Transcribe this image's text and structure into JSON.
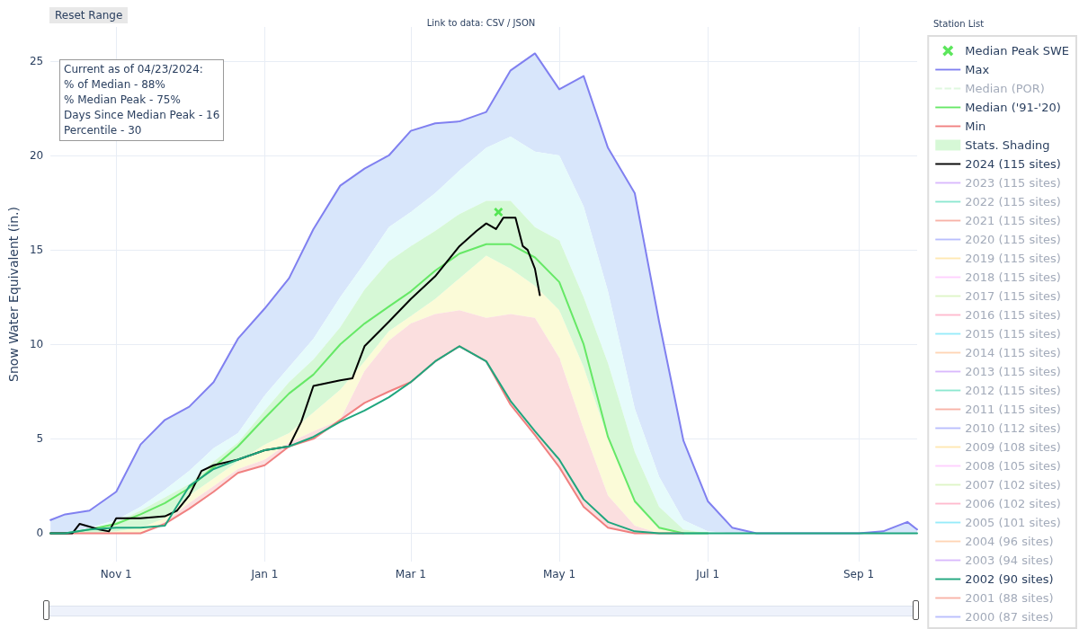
{
  "chart_data": {
    "type": "line",
    "ylabel": "Snow Water Equivalent (in.)",
    "x": [
      "2023-10-05",
      "2023-10-11",
      "2023-10-21",
      "2023-11-01",
      "2023-11-11",
      "2023-11-21",
      "2023-12-01",
      "2023-12-11",
      "2023-12-21",
      "2024-01-01",
      "2024-01-11",
      "2024-01-21",
      "2024-02-01",
      "2024-02-11",
      "2024-02-21",
      "2024-03-01",
      "2024-03-11",
      "2024-03-21",
      "2024-04-01",
      "2024-04-11",
      "2024-04-21",
      "2024-05-01",
      "2024-05-11",
      "2024-05-21",
      "2024-06-01",
      "2024-06-11",
      "2024-06-21",
      "2024-07-01",
      "2024-07-11",
      "2024-07-21",
      "2024-08-01",
      "2024-08-11",
      "2024-08-21",
      "2024-09-01",
      "2024-09-11",
      "2024-09-21",
      "2024-09-25"
    ],
    "xlim": [
      "2023-10-05",
      "2024-09-25"
    ],
    "xticks": [
      {
        "value": "2023-11-01",
        "label": "Nov 1"
      },
      {
        "value": "2024-01-01",
        "label": "Jan 1"
      },
      {
        "value": "2024-03-01",
        "label": "Mar 1"
      },
      {
        "value": "2024-05-01",
        "label": "May 1"
      },
      {
        "value": "2024-07-01",
        "label": "Jul 1"
      },
      {
        "value": "2024-09-01",
        "label": "Sep 1"
      }
    ],
    "ylim": [
      -1.5,
      26.8
    ],
    "yticks": [
      0,
      5,
      10,
      15,
      20,
      25
    ],
    "grid": true,
    "legend": "right",
    "marker": "none",
    "line_style": "solid",
    "annotations": [
      "Reset Range",
      "Link to data: CSV / JSON",
      "Station List",
      "Current as of 04/23/2024:",
      "% of Median - 88%",
      "% Median Peak - 75%",
      "Days Since Median Peak - 16",
      "Percentile - 30"
    ],
    "series": [
      {
        "type": "line",
        "color": "#d8e6fb",
        "values": [
          null,
          null,
          null,
          null,
          null,
          null,
          null,
          null,
          null,
          null,
          null,
          null,
          null,
          null,
          null,
          null,
          null,
          null,
          null,
          null,
          null,
          null,
          null,
          null,
          null,
          null,
          null,
          null,
          null,
          null,
          null,
          null,
          null,
          null,
          null,
          null,
          null
        ],
        "lower": [
          0,
          0,
          0.3,
          0.7,
          1.4,
          2.3,
          3.3,
          4.5,
          5.3,
          7.3,
          8.8,
          10.3,
          12.5,
          14.3,
          16.2,
          17.0,
          18.0,
          19.2,
          20.4,
          21.0,
          20.2,
          20.0,
          17.3,
          12.8,
          6.6,
          3.0,
          0.7,
          0.1,
          0,
          0,
          0,
          0,
          0,
          0,
          0,
          0,
          0
        ],
        "upper": [
          0.7,
          1.0,
          1.2,
          2.2,
          4.7,
          6.0,
          6.7,
          8.0,
          10.3,
          11.9,
          13.5,
          16.1,
          18.4,
          19.3,
          20.0,
          21.3,
          21.7,
          21.8,
          22.3,
          24.5,
          25.4,
          23.5,
          24.2,
          20.4,
          18.0,
          11.2,
          4.9,
          1.7,
          0.3,
          0,
          0,
          0,
          0,
          0,
          0.1,
          0.6,
          0.2
        ]
      },
      {
        "type": "line",
        "color": "#e6fbfb",
        "values": [
          null,
          null,
          null,
          null,
          null,
          null,
          null,
          null,
          null,
          null,
          null,
          null,
          null,
          null,
          null,
          null,
          null,
          null,
          null,
          null,
          null,
          null,
          null,
          null,
          null,
          null,
          null,
          null,
          null,
          null,
          null,
          null,
          null,
          null,
          null,
          null,
          null
        ],
        "lower": [
          0,
          0,
          0.2,
          0.6,
          1.2,
          1.9,
          2.6,
          3.8,
          4.8,
          6.5,
          8.0,
          9.2,
          10.9,
          12.9,
          14.4,
          15.2,
          16.0,
          16.9,
          17.6,
          17.6,
          16.2,
          15.5,
          12.5,
          9.0,
          4.3,
          1.4,
          0.2,
          0,
          0,
          0,
          0,
          0,
          0,
          0,
          0,
          0,
          0
        ],
        "upper": [
          0,
          0,
          0.3,
          0.7,
          1.4,
          2.3,
          3.3,
          4.5,
          5.3,
          7.3,
          8.8,
          10.3,
          12.5,
          14.3,
          16.2,
          17.0,
          18.0,
          19.2,
          20.4,
          21.0,
          20.2,
          20.0,
          17.3,
          12.8,
          6.6,
          3.0,
          0.7,
          0.1,
          0,
          0,
          0,
          0,
          0,
          0,
          0,
          0,
          0
        ]
      },
      {
        "type": "line",
        "color": "#fbfbd8",
        "values": [
          null,
          null,
          null,
          null,
          null,
          null,
          null,
          null,
          null,
          null,
          null,
          null,
          null,
          null,
          null,
          null,
          null,
          null,
          null,
          null,
          null,
          null,
          null,
          null,
          null,
          null,
          null,
          null,
          null,
          null,
          null,
          null,
          null,
          null,
          null,
          null,
          null
        ],
        "lower": [
          0,
          0,
          0,
          0,
          0,
          0.6,
          1.6,
          2.5,
          3.4,
          3.9,
          4.8,
          5.4,
          6.0,
          8.6,
          10.2,
          11.1,
          11.6,
          11.8,
          11.4,
          11.6,
          11.4,
          9.3,
          5.5,
          2.0,
          0.4,
          0,
          0,
          0,
          0,
          0,
          0,
          0,
          0,
          0,
          0,
          0,
          0
        ],
        "upper": [
          0,
          0,
          0,
          0.1,
          0.3,
          0.8,
          2.0,
          2.9,
          3.8,
          4.7,
          5.3,
          6.4,
          7.6,
          9.1,
          10.7,
          11.5,
          12.4,
          13.5,
          14.7,
          14.0,
          13.1,
          11.8,
          8.8,
          5.0,
          1.6,
          0.2,
          0,
          0,
          0,
          0,
          0,
          0,
          0,
          0,
          0,
          0,
          0
        ]
      },
      {
        "type": "line",
        "color": "#fbdfdf",
        "values": [
          null,
          null,
          null,
          null,
          null,
          null,
          null,
          null,
          null,
          null,
          null,
          null,
          null,
          null,
          null,
          null,
          null,
          null,
          null,
          null,
          null,
          null,
          null,
          null,
          null,
          null,
          null,
          null,
          null,
          null,
          null,
          null,
          null,
          null,
          null,
          null,
          null
        ],
        "lower": [
          0,
          0,
          0,
          0,
          0,
          0.5,
          1.3,
          2.2,
          3.2,
          3.6,
          4.6,
          5.0,
          6.0,
          6.9,
          7.5,
          8.0,
          9.1,
          9.9,
          9.1,
          6.8,
          5.2,
          3.5,
          1.4,
          0.3,
          0,
          0,
          0,
          0,
          0,
          0,
          0,
          0,
          0,
          0,
          0,
          0,
          0
        ],
        "upper": [
          0,
          0,
          0,
          0,
          0,
          0.6,
          1.6,
          2.5,
          3.4,
          3.9,
          4.8,
          5.4,
          6.0,
          8.6,
          10.2,
          11.1,
          11.6,
          11.8,
          11.4,
          11.6,
          11.4,
          9.3,
          5.5,
          2.0,
          0.4,
          0,
          0,
          0,
          0,
          0,
          0,
          0,
          0,
          0,
          0,
          0,
          0
        ]
      },
      {
        "type": "scatter",
        "name": "Median Peak SWE",
        "color": "#33e033",
        "marker": "cross",
        "x": [
          "2024-04-06"
        ],
        "values": [
          17.0
        ]
      },
      {
        "name": "Max",
        "color": "#8080f0",
        "values": [
          0.7,
          1.0,
          1.2,
          2.2,
          4.7,
          6.0,
          6.7,
          8.0,
          10.3,
          11.9,
          13.5,
          16.1,
          18.4,
          19.3,
          20.0,
          21.3,
          21.7,
          21.8,
          22.3,
          24.5,
          25.4,
          23.5,
          24.2,
          20.4,
          18.0,
          11.2,
          4.9,
          1.7,
          0.3,
          0,
          0,
          0,
          0,
          0,
          0.1,
          0.6,
          0.2
        ]
      },
      {
        "name": "Median (POR)",
        "color": "#b8f0b8",
        "line_style": "dashed",
        "values": [
          null,
          null,
          null,
          null,
          null,
          null,
          null,
          null,
          null,
          null,
          null,
          null,
          null,
          null,
          null,
          null,
          null,
          null,
          null,
          null,
          null,
          null,
          null,
          null,
          null,
          null,
          null,
          null,
          null,
          null,
          null,
          null,
          null,
          null,
          null,
          null,
          null
        ]
      },
      {
        "name": "Median ('91-'20)",
        "color": "#66e866",
        "values": [
          0,
          0,
          0.2,
          0.5,
          1.0,
          1.6,
          2.4,
          3.5,
          4.6,
          6.1,
          7.4,
          8.4,
          10.0,
          11.1,
          12.0,
          12.8,
          13.9,
          14.8,
          15.3,
          15.3,
          14.6,
          13.3,
          10.0,
          5.1,
          1.7,
          0.3,
          0,
          0,
          null,
          null,
          null,
          null,
          null,
          null,
          null,
          null,
          null
        ]
      },
      {
        "name": "Min",
        "color": "#f08080",
        "values": [
          0,
          0,
          0,
          0,
          0,
          0.5,
          1.3,
          2.2,
          3.2,
          3.6,
          4.6,
          5.0,
          6.0,
          6.9,
          7.5,
          8.0,
          9.1,
          9.9,
          9.1,
          6.8,
          5.2,
          3.5,
          1.4,
          0.3,
          0,
          0,
          0,
          null,
          null,
          null,
          null,
          null,
          null,
          null,
          null,
          null,
          null
        ]
      },
      {
        "type": "line",
        "name": "Stats. Shading",
        "color": "#d6f8d6",
        "values": [
          null,
          null,
          null,
          null,
          null,
          null,
          null,
          null,
          null,
          null,
          null,
          null,
          null,
          null,
          null,
          null,
          null,
          null,
          null,
          null,
          null,
          null,
          null,
          null,
          null,
          null,
          null,
          null,
          null,
          null,
          null,
          null,
          null,
          null,
          null,
          null,
          null
        ],
        "lower": [
          0,
          0,
          0,
          0.1,
          0.3,
          0.8,
          2.0,
          2.9,
          3.8,
          4.7,
          5.3,
          6.4,
          7.6,
          9.1,
          10.7,
          11.5,
          12.4,
          13.5,
          14.7,
          14.0,
          13.1,
          11.8,
          8.8,
          5.0,
          1.6,
          0.2,
          0,
          0,
          0,
          0,
          0,
          0,
          0,
          0,
          0,
          0,
          0
        ],
        "upper": [
          0,
          0,
          0.2,
          0.6,
          1.2,
          1.9,
          2.6,
          3.8,
          4.8,
          6.5,
          8.0,
          9.2,
          10.9,
          12.9,
          14.4,
          15.2,
          16.0,
          16.9,
          17.6,
          17.6,
          16.2,
          15.5,
          12.5,
          9.0,
          4.3,
          1.4,
          0.2,
          0,
          0,
          0,
          0,
          0,
          0,
          0,
          0,
          0,
          0
        ]
      },
      {
        "name": "2024 (115 sites)",
        "color": "#000000",
        "x": [
          "2023-10-05",
          "2023-10-14",
          "2023-10-17",
          "2023-10-25",
          "2023-10-29",
          "2023-11-01",
          "2023-11-11",
          "2023-11-21",
          "2023-11-26",
          "2023-12-01",
          "2023-12-06",
          "2023-12-11",
          "2023-12-21",
          "2024-01-01",
          "2024-01-11",
          "2024-01-16",
          "2024-01-21",
          "2024-02-01",
          "2024-02-06",
          "2024-02-11",
          "2024-02-21",
          "2024-03-01",
          "2024-03-11",
          "2024-03-21",
          "2024-03-28",
          "2024-04-01",
          "2024-04-05",
          "2024-04-08",
          "2024-04-13",
          "2024-04-16",
          "2024-04-18",
          "2024-04-21",
          "2024-04-23"
        ],
        "values": [
          0,
          0,
          0.5,
          0.2,
          0.1,
          0.8,
          0.8,
          0.9,
          1.2,
          2.0,
          3.3,
          3.6,
          3.9,
          4.4,
          4.6,
          5.9,
          7.8,
          8.1,
          8.2,
          9.9,
          11.2,
          12.4,
          13.6,
          15.2,
          16.0,
          16.4,
          16.1,
          16.7,
          16.7,
          15.2,
          15.0,
          14.0,
          12.6
        ]
      },
      {
        "name": "2023 (115 sites)",
        "color": "#ab63fa",
        "values": [
          null,
          null,
          null,
          null,
          null,
          null,
          null,
          null,
          null,
          null,
          null,
          null,
          null,
          null,
          null,
          null,
          null,
          null,
          null,
          null,
          null,
          null,
          null,
          null,
          null,
          null,
          null,
          null,
          null,
          null,
          null,
          null,
          null,
          null,
          null,
          null,
          null
        ]
      },
      {
        "name": "2022 (115 sites)",
        "color": "#00cc96",
        "values": [
          null,
          null,
          null,
          null,
          null,
          null,
          null,
          null,
          null,
          null,
          null,
          null,
          null,
          null,
          null,
          null,
          null,
          null,
          null,
          null,
          null,
          null,
          null,
          null,
          null,
          null,
          null,
          null,
          null,
          null,
          null,
          null,
          null,
          null,
          null,
          null,
          null
        ]
      },
      {
        "name": "2021 (115 sites)",
        "color": "#ef553b",
        "values": [
          null,
          null,
          null,
          null,
          null,
          null,
          null,
          null,
          null,
          null,
          null,
          null,
          null,
          null,
          null,
          null,
          null,
          null,
          null,
          null,
          null,
          null,
          null,
          null,
          null,
          null,
          null,
          null,
          null,
          null,
          null,
          null,
          null,
          null,
          null,
          null,
          null
        ]
      },
      {
        "name": "2020 (115 sites)",
        "color": "#636efa",
        "values": [
          null,
          null,
          null,
          null,
          null,
          null,
          null,
          null,
          null,
          null,
          null,
          null,
          null,
          null,
          null,
          null,
          null,
          null,
          null,
          null,
          null,
          null,
          null,
          null,
          null,
          null,
          null,
          null,
          null,
          null,
          null,
          null,
          null,
          null,
          null,
          null,
          null
        ]
      },
      {
        "name": "2019 (115 sites)",
        "color": "#fecb52",
        "values": [
          null,
          null,
          null,
          null,
          null,
          null,
          null,
          null,
          null,
          null,
          null,
          null,
          null,
          null,
          null,
          null,
          null,
          null,
          null,
          null,
          null,
          null,
          null,
          null,
          null,
          null,
          null,
          null,
          null,
          null,
          null,
          null,
          null,
          null,
          null,
          null,
          null
        ]
      },
      {
        "name": "2018 (115 sites)",
        "color": "#ff97ff",
        "values": [
          null,
          null,
          null,
          null,
          null,
          null,
          null,
          null,
          null,
          null,
          null,
          null,
          null,
          null,
          null,
          null,
          null,
          null,
          null,
          null,
          null,
          null,
          null,
          null,
          null,
          null,
          null,
          null,
          null,
          null,
          null,
          null,
          null,
          null,
          null,
          null,
          null
        ]
      },
      {
        "name": "2017 (115 sites)",
        "color": "#b6e880",
        "values": [
          null,
          null,
          null,
          null,
          null,
          null,
          null,
          null,
          null,
          null,
          null,
          null,
          null,
          null,
          null,
          null,
          null,
          null,
          null,
          null,
          null,
          null,
          null,
          null,
          null,
          null,
          null,
          null,
          null,
          null,
          null,
          null,
          null,
          null,
          null,
          null,
          null
        ]
      },
      {
        "name": "2016 (115 sites)",
        "color": "#ff6692",
        "values": [
          null,
          null,
          null,
          null,
          null,
          null,
          null,
          null,
          null,
          null,
          null,
          null,
          null,
          null,
          null,
          null,
          null,
          null,
          null,
          null,
          null,
          null,
          null,
          null,
          null,
          null,
          null,
          null,
          null,
          null,
          null,
          null,
          null,
          null,
          null,
          null,
          null
        ]
      },
      {
        "name": "2015 (115 sites)",
        "color": "#19d3f3",
        "values": [
          null,
          null,
          null,
          null,
          null,
          null,
          null,
          null,
          null,
          null,
          null,
          null,
          null,
          null,
          null,
          null,
          null,
          null,
          null,
          null,
          null,
          null,
          null,
          null,
          null,
          null,
          null,
          null,
          null,
          null,
          null,
          null,
          null,
          null,
          null,
          null,
          null
        ]
      },
      {
        "name": "2014 (115 sites)",
        "color": "#ffa15a",
        "values": [
          null,
          null,
          null,
          null,
          null,
          null,
          null,
          null,
          null,
          null,
          null,
          null,
          null,
          null,
          null,
          null,
          null,
          null,
          null,
          null,
          null,
          null,
          null,
          null,
          null,
          null,
          null,
          null,
          null,
          null,
          null,
          null,
          null,
          null,
          null,
          null,
          null
        ]
      },
      {
        "name": "2013 (115 sites)",
        "color": "#ab63fa",
        "values": [
          null,
          null,
          null,
          null,
          null,
          null,
          null,
          null,
          null,
          null,
          null,
          null,
          null,
          null,
          null,
          null,
          null,
          null,
          null,
          null,
          null,
          null,
          null,
          null,
          null,
          null,
          null,
          null,
          null,
          null,
          null,
          null,
          null,
          null,
          null,
          null,
          null
        ]
      },
      {
        "name": "2012 (115 sites)",
        "color": "#00cc96",
        "values": [
          null,
          null,
          null,
          null,
          null,
          null,
          null,
          null,
          null,
          null,
          null,
          null,
          null,
          null,
          null,
          null,
          null,
          null,
          null,
          null,
          null,
          null,
          null,
          null,
          null,
          null,
          null,
          null,
          null,
          null,
          null,
          null,
          null,
          null,
          null,
          null,
          null
        ]
      },
      {
        "name": "2011 (115 sites)",
        "color": "#ef553b",
        "values": [
          null,
          null,
          null,
          null,
          null,
          null,
          null,
          null,
          null,
          null,
          null,
          null,
          null,
          null,
          null,
          null,
          null,
          null,
          null,
          null,
          null,
          null,
          null,
          null,
          null,
          null,
          null,
          null,
          null,
          null,
          null,
          null,
          null,
          null,
          null,
          null,
          null
        ]
      },
      {
        "name": "2010 (112 sites)",
        "color": "#636efa",
        "values": [
          null,
          null,
          null,
          null,
          null,
          null,
          null,
          null,
          null,
          null,
          null,
          null,
          null,
          null,
          null,
          null,
          null,
          null,
          null,
          null,
          null,
          null,
          null,
          null,
          null,
          null,
          null,
          null,
          null,
          null,
          null,
          null,
          null,
          null,
          null,
          null,
          null
        ]
      },
      {
        "name": "2009 (108 sites)",
        "color": "#fecb52",
        "values": [
          null,
          null,
          null,
          null,
          null,
          null,
          null,
          null,
          null,
          null,
          null,
          null,
          null,
          null,
          null,
          null,
          null,
          null,
          null,
          null,
          null,
          null,
          null,
          null,
          null,
          null,
          null,
          null,
          null,
          null,
          null,
          null,
          null,
          null,
          null,
          null,
          null
        ]
      },
      {
        "name": "2008 (105 sites)",
        "color": "#ff97ff",
        "values": [
          null,
          null,
          null,
          null,
          null,
          null,
          null,
          null,
          null,
          null,
          null,
          null,
          null,
          null,
          null,
          null,
          null,
          null,
          null,
          null,
          null,
          null,
          null,
          null,
          null,
          null,
          null,
          null,
          null,
          null,
          null,
          null,
          null,
          null,
          null,
          null,
          null
        ]
      },
      {
        "name": "2007 (102 sites)",
        "color": "#b6e880",
        "values": [
          null,
          null,
          null,
          null,
          null,
          null,
          null,
          null,
          null,
          null,
          null,
          null,
          null,
          null,
          null,
          null,
          null,
          null,
          null,
          null,
          null,
          null,
          null,
          null,
          null,
          null,
          null,
          null,
          null,
          null,
          null,
          null,
          null,
          null,
          null,
          null,
          null
        ]
      },
      {
        "name": "2006 (102 sites)",
        "color": "#ff6692",
        "values": [
          null,
          null,
          null,
          null,
          null,
          null,
          null,
          null,
          null,
          null,
          null,
          null,
          null,
          null,
          null,
          null,
          null,
          null,
          null,
          null,
          null,
          null,
          null,
          null,
          null,
          null,
          null,
          null,
          null,
          null,
          null,
          null,
          null,
          null,
          null,
          null,
          null
        ]
      },
      {
        "name": "2005 (101 sites)",
        "color": "#19d3f3",
        "values": [
          null,
          null,
          null,
          null,
          null,
          null,
          null,
          null,
          null,
          null,
          null,
          null,
          null,
          null,
          null,
          null,
          null,
          null,
          null,
          null,
          null,
          null,
          null,
          null,
          null,
          null,
          null,
          null,
          null,
          null,
          null,
          null,
          null,
          null,
          null,
          null,
          null
        ]
      },
      {
        "name": "2004 (96 sites)",
        "color": "#ffa15a",
        "values": [
          null,
          null,
          null,
          null,
          null,
          null,
          null,
          null,
          null,
          null,
          null,
          null,
          null,
          null,
          null,
          null,
          null,
          null,
          null,
          null,
          null,
          null,
          null,
          null,
          null,
          null,
          null,
          null,
          null,
          null,
          null,
          null,
          null,
          null,
          null,
          null,
          null
        ]
      },
      {
        "name": "2003 (94 sites)",
        "color": "#ab63fa",
        "values": [
          null,
          null,
          null,
          null,
          null,
          null,
          null,
          null,
          null,
          null,
          null,
          null,
          null,
          null,
          null,
          null,
          null,
          null,
          null,
          null,
          null,
          null,
          null,
          null,
          null,
          null,
          null,
          null,
          null,
          null,
          null,
          null,
          null,
          null,
          null,
          null,
          null
        ]
      },
      {
        "name": "2002 (90 sites)",
        "color": "#1fa67e",
        "values": [
          0,
          0,
          0.2,
          0.3,
          0.3,
          0.4,
          2.5,
          3.4,
          3.9,
          4.4,
          4.6,
          5.1,
          5.9,
          6.5,
          7.2,
          8.0,
          9.1,
          9.9,
          9.1,
          7.0,
          5.4,
          3.9,
          1.8,
          0.6,
          0.1,
          0,
          0,
          0,
          0,
          0,
          0,
          0,
          0,
          0,
          0,
          0,
          0
        ]
      },
      {
        "name": "2001 (88 sites)",
        "color": "#ef553b",
        "values": [
          null,
          null,
          null,
          null,
          null,
          null,
          null,
          null,
          null,
          null,
          null,
          null,
          null,
          null,
          null,
          null,
          null,
          null,
          null,
          null,
          null,
          null,
          null,
          null,
          null,
          null,
          null,
          null,
          null,
          null,
          null,
          null,
          null,
          null,
          null,
          null,
          null
        ]
      },
      {
        "name": "2000 (87 sites)",
        "color": "#636efa",
        "values": [
          null,
          null,
          null,
          null,
          null,
          null,
          null,
          null,
          null,
          null,
          null,
          null,
          null,
          null,
          null,
          null,
          null,
          null,
          null,
          null,
          null,
          null,
          null,
          null,
          null,
          null,
          null,
          null,
          null,
          null,
          null,
          null,
          null,
          null,
          null,
          null,
          null
        ]
      }
    ]
  }
}
